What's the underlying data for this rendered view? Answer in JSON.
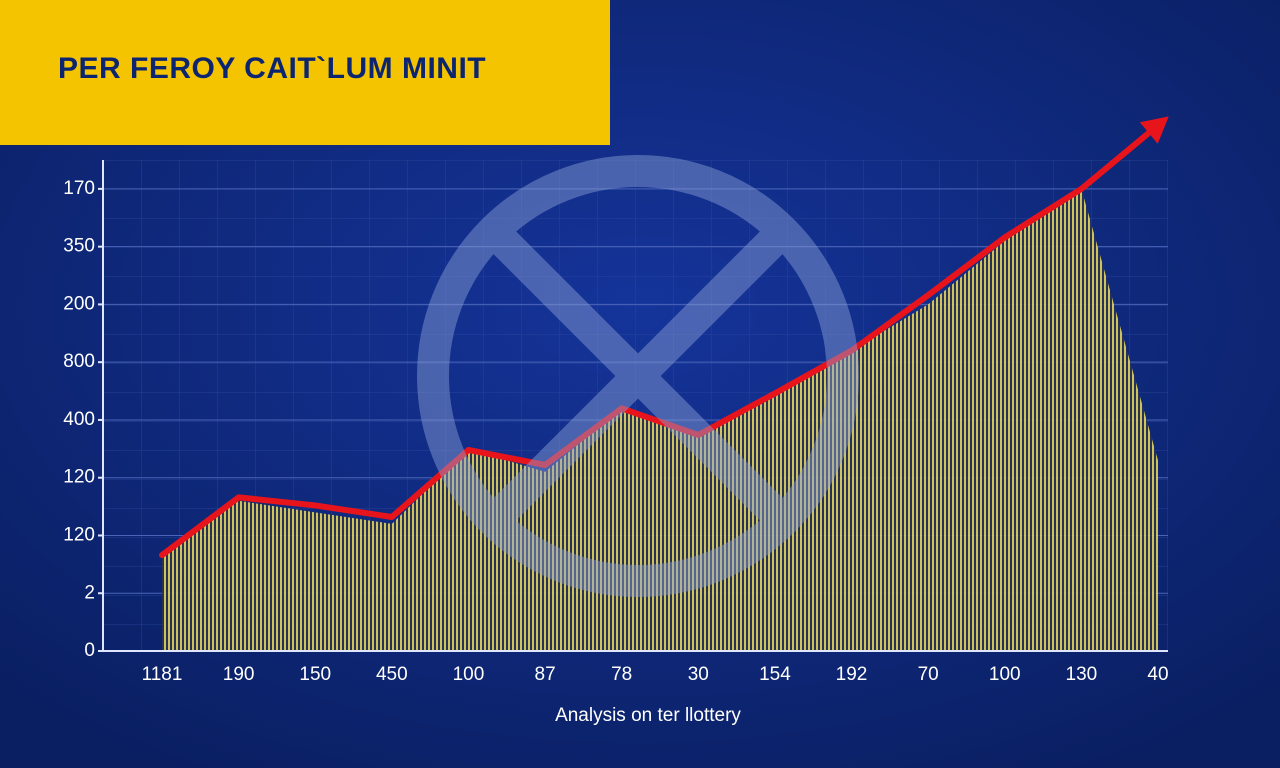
{
  "chart_data": {
    "type": "line",
    "title": "PER FEROY CAIT`LUM MINIT",
    "x_label": "Analysis on ter llottery",
    "categories": [
      "1181",
      "190",
      "150",
      "450",
      "100",
      "87",
      "78",
      "30",
      "154",
      "192",
      "70",
      "100",
      "130",
      "40"
    ],
    "series": [
      {
        "type": "area",
        "color": "#d9cc4e",
        "values": [
          1.6,
          2.6,
          2.4,
          2.2,
          3.5,
          3.1,
          4.2,
          3.7,
          4.4,
          5.2,
          6.0,
          7.1,
          8.0,
          3.3
        ]
      },
      {
        "type": "line",
        "color": "#e8141c",
        "values": [
          1.66,
          2.66,
          2.52,
          2.32,
          3.48,
          3.22,
          4.2,
          3.74,
          4.46,
          5.2,
          6.16,
          7.16,
          8.0,
          9.1
        ]
      }
    ],
    "ylim": [
      0,
      8.5
    ],
    "yticks": [
      {
        "value": 0,
        "label": "0"
      },
      {
        "value": 1,
        "label": "2"
      },
      {
        "value": 2,
        "label": "120"
      },
      {
        "value": 3,
        "label": "120"
      },
      {
        "value": 4,
        "label": "400"
      },
      {
        "value": 5,
        "label": "800"
      },
      {
        "value": 6,
        "label": "200"
      },
      {
        "value": 7,
        "label": "350"
      },
      {
        "value": 8,
        "label": "170"
      }
    ],
    "grid": true
  }
}
